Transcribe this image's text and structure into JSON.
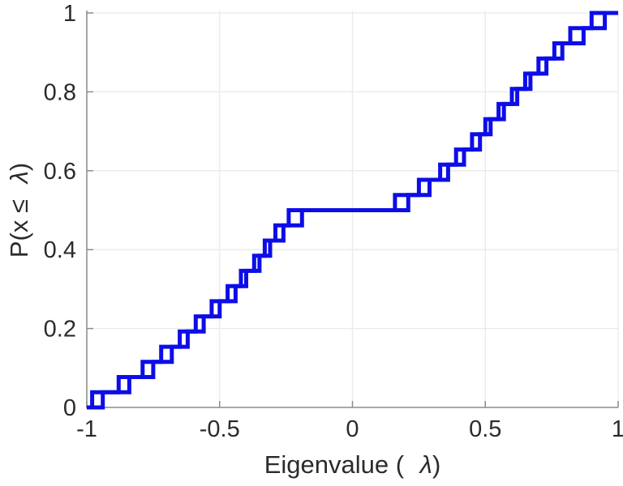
{
  "figure": {
    "background": "#ffffff",
    "axis_color": "#8c8c8c",
    "grid_color": "#eaeaea",
    "tick_color": "#8c8c8c",
    "text_color": "#2b2b2b",
    "line_color": "#0d0de8"
  },
  "chart_data": {
    "type": "line",
    "subtype": "empirical-cdf-staircase",
    "title": "",
    "xlabel": "Eigenvalue (  λ)",
    "ylabel": "P(x ≤  λ)",
    "xlabel_parts": {
      "prefix": "Eigenvalue ( ",
      "symbol": "λ",
      "suffix": ")"
    },
    "ylabel_parts": {
      "prefix": "P(x ≤ ",
      "symbol": "λ",
      "suffix": ")"
    },
    "xlim": [
      -1,
      1
    ],
    "ylim": [
      0,
      1
    ],
    "grid": true,
    "legend": null,
    "xticks": {
      "values": [
        -1,
        -0.5,
        0,
        0.5,
        1
      ],
      "labels": [
        "-1",
        "-0.5",
        "0",
        "0.5",
        "1"
      ]
    },
    "yticks": {
      "values": [
        0,
        0.2,
        0.4,
        0.6,
        0.8,
        1
      ],
      "labels": [
        "0",
        "0.2",
        "0.4",
        "0.6",
        "0.8",
        "1"
      ]
    },
    "plateau_level": 0.5,
    "series": [
      {
        "name": "ecdf-curve-1",
        "n_points": 26,
        "step_height": 0.03846,
        "eigenvalues": [
          -0.98,
          -0.88,
          -0.79,
          -0.72,
          -0.65,
          -0.59,
          -0.53,
          -0.47,
          -0.42,
          -0.37,
          -0.33,
          -0.29,
          -0.24,
          0.16,
          0.25,
          0.33,
          0.39,
          0.45,
          0.5,
          0.55,
          0.6,
          0.65,
          0.7,
          0.76,
          0.82,
          0.9
        ]
      },
      {
        "name": "ecdf-curve-2",
        "n_points": 26,
        "step_height": 0.03846,
        "eigenvalues": [
          -0.94,
          -0.84,
          -0.75,
          -0.68,
          -0.62,
          -0.56,
          -0.5,
          -0.44,
          -0.4,
          -0.35,
          -0.31,
          -0.26,
          -0.19,
          0.21,
          0.29,
          0.36,
          0.42,
          0.48,
          0.52,
          0.57,
          0.62,
          0.67,
          0.73,
          0.79,
          0.87,
          0.95
        ]
      }
    ]
  }
}
